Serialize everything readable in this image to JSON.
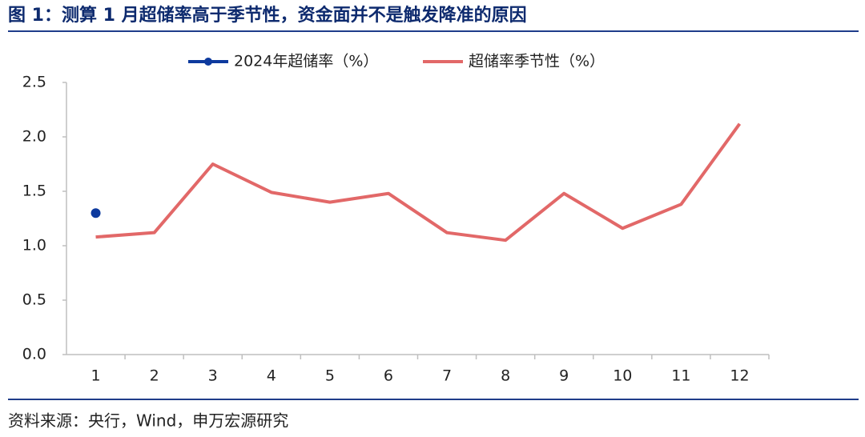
{
  "chart_data": {
    "type": "line",
    "title": "图 1：测算 1 月超储率高于季节性，资金面并不是触发降准的原因",
    "source": "资料来源：央行，Wind，申万宏源研究",
    "categories": [
      "1",
      "2",
      "3",
      "4",
      "5",
      "6",
      "7",
      "8",
      "9",
      "10",
      "11",
      "12"
    ],
    "series": [
      {
        "name": "2024年超储率（%）",
        "color": "#0d3a9e",
        "marker": true,
        "values": [
          1.3,
          null,
          null,
          null,
          null,
          null,
          null,
          null,
          null,
          null,
          null,
          null
        ]
      },
      {
        "name": "超储率季节性（%）",
        "color": "#e26868",
        "marker": false,
        "values": [
          1.08,
          1.12,
          1.75,
          1.49,
          1.4,
          1.48,
          1.12,
          1.05,
          1.48,
          1.16,
          1.38,
          2.12
        ]
      }
    ],
    "ylim": [
      0,
      2.5
    ],
    "yticks": [
      {
        "value": 0,
        "label": "0.0"
      },
      0.5,
      {
        "value": 1,
        "label": "1.0"
      },
      1.5,
      {
        "value": 2,
        "label": "2.0"
      },
      2.5
    ],
    "legend": "top",
    "grid": false
  }
}
